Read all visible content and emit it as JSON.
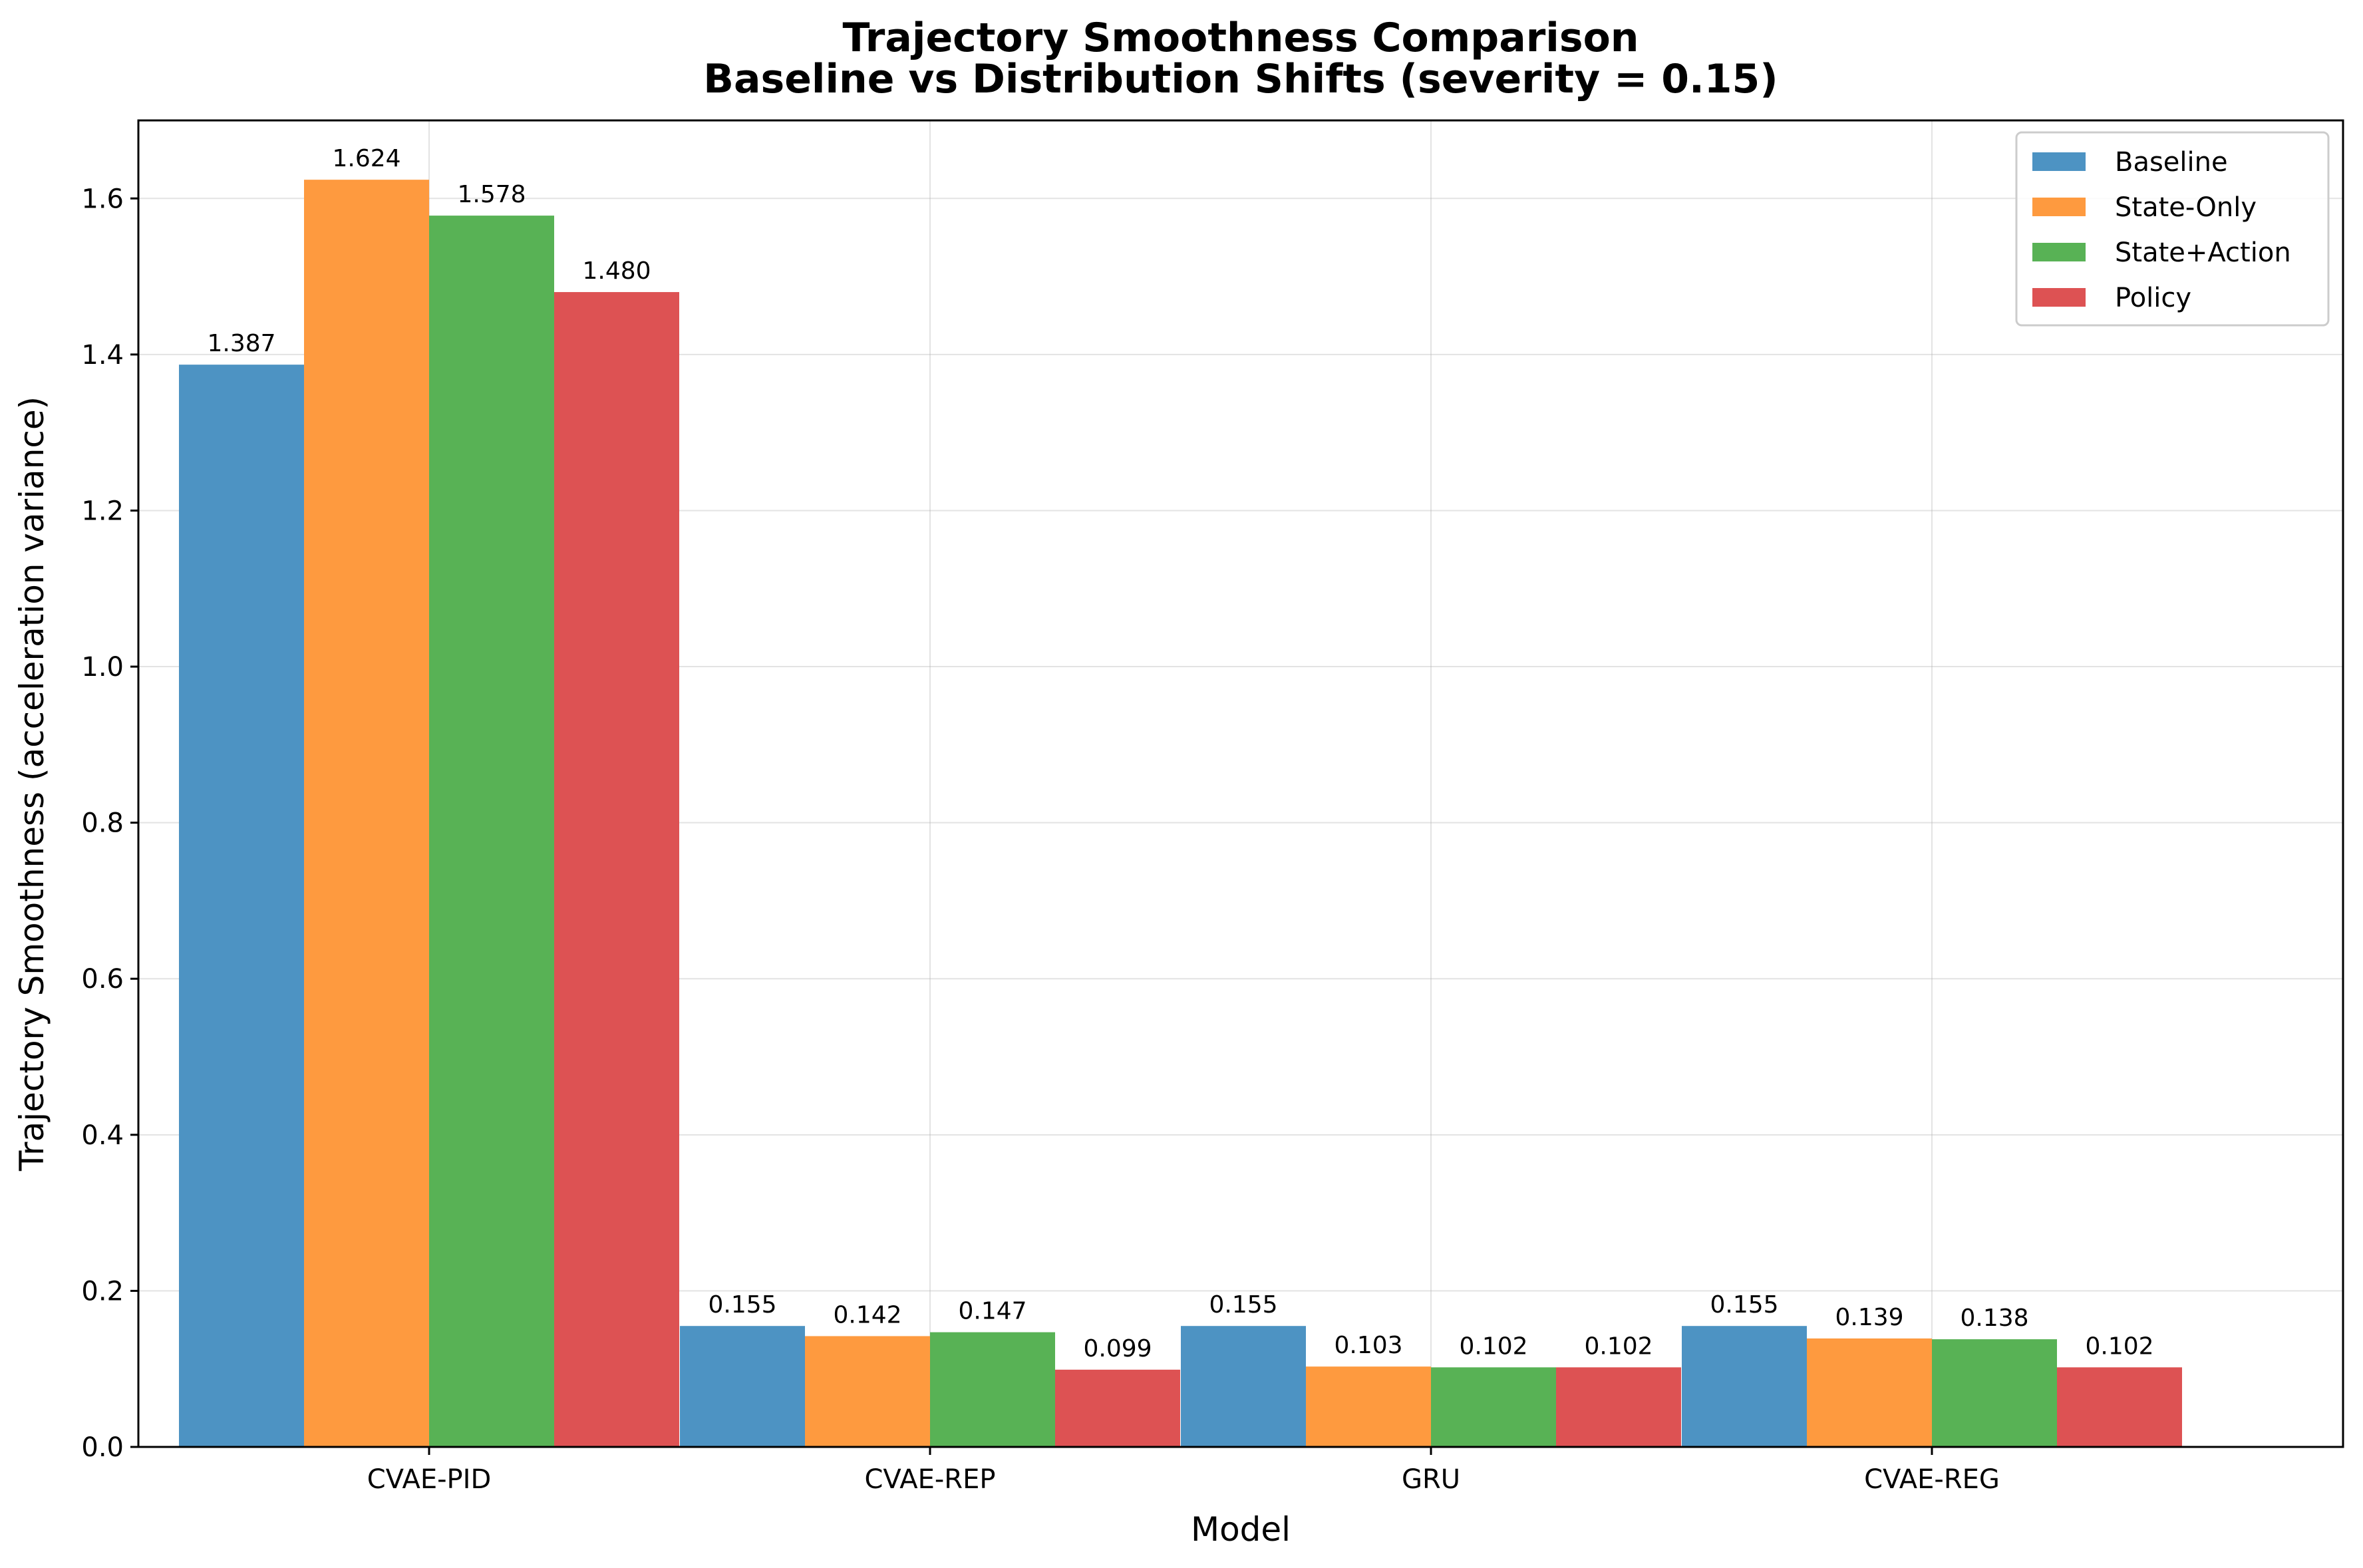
{
  "chart_data": {
    "type": "bar",
    "title_lines": [
      "Trajectory Smoothness Comparison",
      "Baseline vs Distribution Shifts (severity = 0.15)"
    ],
    "xlabel": "Model",
    "ylabel": "Trajectory Smoothness (acceleration variance)",
    "categories": [
      "CVAE-PID",
      "CVAE-REP",
      "GRU",
      "CVAE-REG"
    ],
    "series": [
      {
        "name": "Baseline",
        "color": "#4d93c3",
        "values": [
          1.387,
          0.155,
          0.155,
          0.155
        ],
        "labels": [
          "1.387",
          "0.155",
          "0.155",
          "0.155"
        ]
      },
      {
        "name": "State-Only",
        "color": "#fe9a3f",
        "values": [
          1.624,
          0.142,
          0.103,
          0.139
        ],
        "labels": [
          "1.624",
          "0.142",
          "0.103",
          "0.139"
        ]
      },
      {
        "name": "State+Action",
        "color": "#58b255",
        "values": [
          1.578,
          0.147,
          0.102,
          0.138
        ],
        "labels": [
          "1.578",
          "0.147",
          "0.102",
          "0.138"
        ]
      },
      {
        "name": "Policy",
        "color": "#dd5253",
        "values": [
          1.48,
          0.099,
          0.102,
          0.102
        ],
        "labels": [
          "1.480",
          "0.099",
          "0.102",
          "0.102"
        ]
      }
    ],
    "ylim": [
      0,
      1.7
    ],
    "yticks": [
      0.0,
      0.2,
      0.4,
      0.6,
      0.8,
      1.0,
      1.2,
      1.4,
      1.6
    ],
    "ytick_labels": [
      "0.0",
      "0.2",
      "0.4",
      "0.6",
      "0.8",
      "1.0",
      "1.2",
      "1.4",
      "1.6"
    ],
    "grid": true,
    "legend_position": "top-right"
  }
}
